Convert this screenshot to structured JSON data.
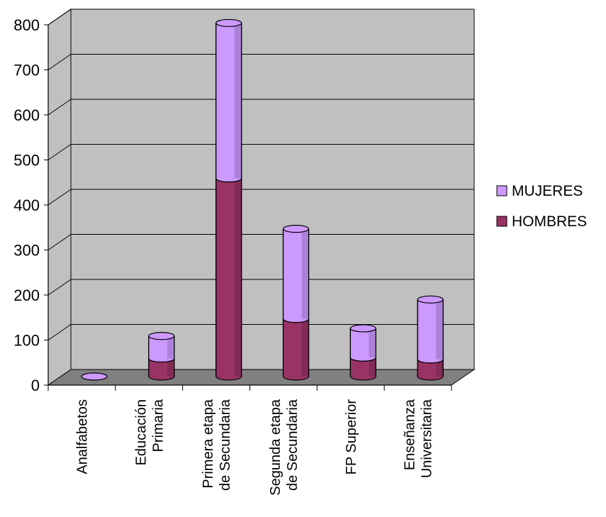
{
  "chart_data": {
    "type": "bar",
    "stacked": true,
    "three_d": true,
    "categories": [
      [
        "Analfabetos"
      ],
      [
        "Educación",
        "Primaria"
      ],
      [
        "Primera etapa",
        "de Secundaria"
      ],
      [
        "Segunda etapa",
        "de Secundaria"
      ],
      [
        "FP Superior"
      ],
      [
        "Enseñanza",
        "Universitaria"
      ]
    ],
    "series": [
      {
        "name": "HOMBRES",
        "values": [
          0,
          40,
          440,
          128,
          42,
          38
        ],
        "color": "#993366"
      },
      {
        "name": "MUJERES",
        "values": [
          0,
          50,
          345,
          200,
          65,
          133
        ],
        "color": "#cc99ff"
      }
    ],
    "yticks": [
      "0",
      "100",
      "200",
      "300",
      "400",
      "500",
      "600",
      "700",
      "800"
    ],
    "ylim": [
      0,
      800
    ],
    "grid": true,
    "legend_position": "right",
    "wall_color": "#c0c0c0",
    "floor_color": "#808080"
  }
}
